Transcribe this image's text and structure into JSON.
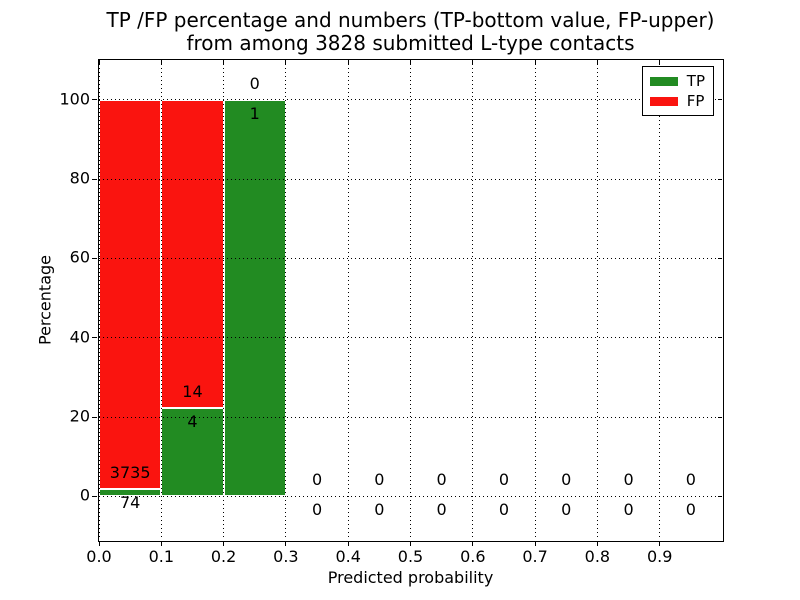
{
  "figure": {
    "title_line1": "TP /FP percentage and numbers (TP-bottom value, FP-upper)",
    "title_line2": "from among 3828 submitted L-type contacts"
  },
  "chart_data": {
    "type": "bar",
    "stacked": true,
    "percent_normalized": true,
    "title": "TP /FP percentage and numbers (TP-bottom value, FP-upper)\nfrom among 3828 submitted L-type contacts",
    "xlabel": "Predicted probability",
    "ylabel": "Percentage",
    "total_contacts": 3828,
    "xlim": [
      0.0,
      1.0
    ],
    "ylim": [
      -11,
      110
    ],
    "xticks": [
      0.0,
      0.1,
      0.2,
      0.3,
      0.4,
      0.5,
      0.6,
      0.7,
      0.8,
      0.9
    ],
    "xtick_labels": [
      "0.0",
      "0.1",
      "0.2",
      "0.3",
      "0.4",
      "0.5",
      "0.6",
      "0.7",
      "0.8",
      "0.9"
    ],
    "yticks": [
      0,
      20,
      40,
      60,
      80,
      100
    ],
    "ytick_labels": [
      "0",
      "20",
      "40",
      "60",
      "80",
      "100"
    ],
    "grid": {
      "x": true,
      "y": true,
      "style": "dotted",
      "color": "#000000"
    },
    "bins": {
      "start": 0.0,
      "width": 0.1,
      "count": 10
    },
    "bar_edge_color": "#ffffff",
    "series": [
      {
        "name": "TP",
        "position": "bottom",
        "color": "#228b22",
        "counts": [
          74,
          4,
          1,
          0,
          0,
          0,
          0,
          0,
          0,
          0
        ],
        "percent": [
          1.94,
          22.22,
          100,
          0,
          0,
          0,
          0,
          0,
          0,
          0
        ]
      },
      {
        "name": "FP",
        "position": "top",
        "color": "#fa140f",
        "counts": [
          3735,
          14,
          0,
          0,
          0,
          0,
          0,
          0,
          0,
          0
        ],
        "percent": [
          98.06,
          77.78,
          0,
          0,
          0,
          0,
          0,
          0,
          0,
          0
        ]
      }
    ],
    "legend": {
      "position": "upper-right",
      "entries": [
        {
          "label": "TP",
          "color": "#228b22"
        },
        {
          "label": "FP",
          "color": "#fa140f"
        }
      ]
    }
  }
}
